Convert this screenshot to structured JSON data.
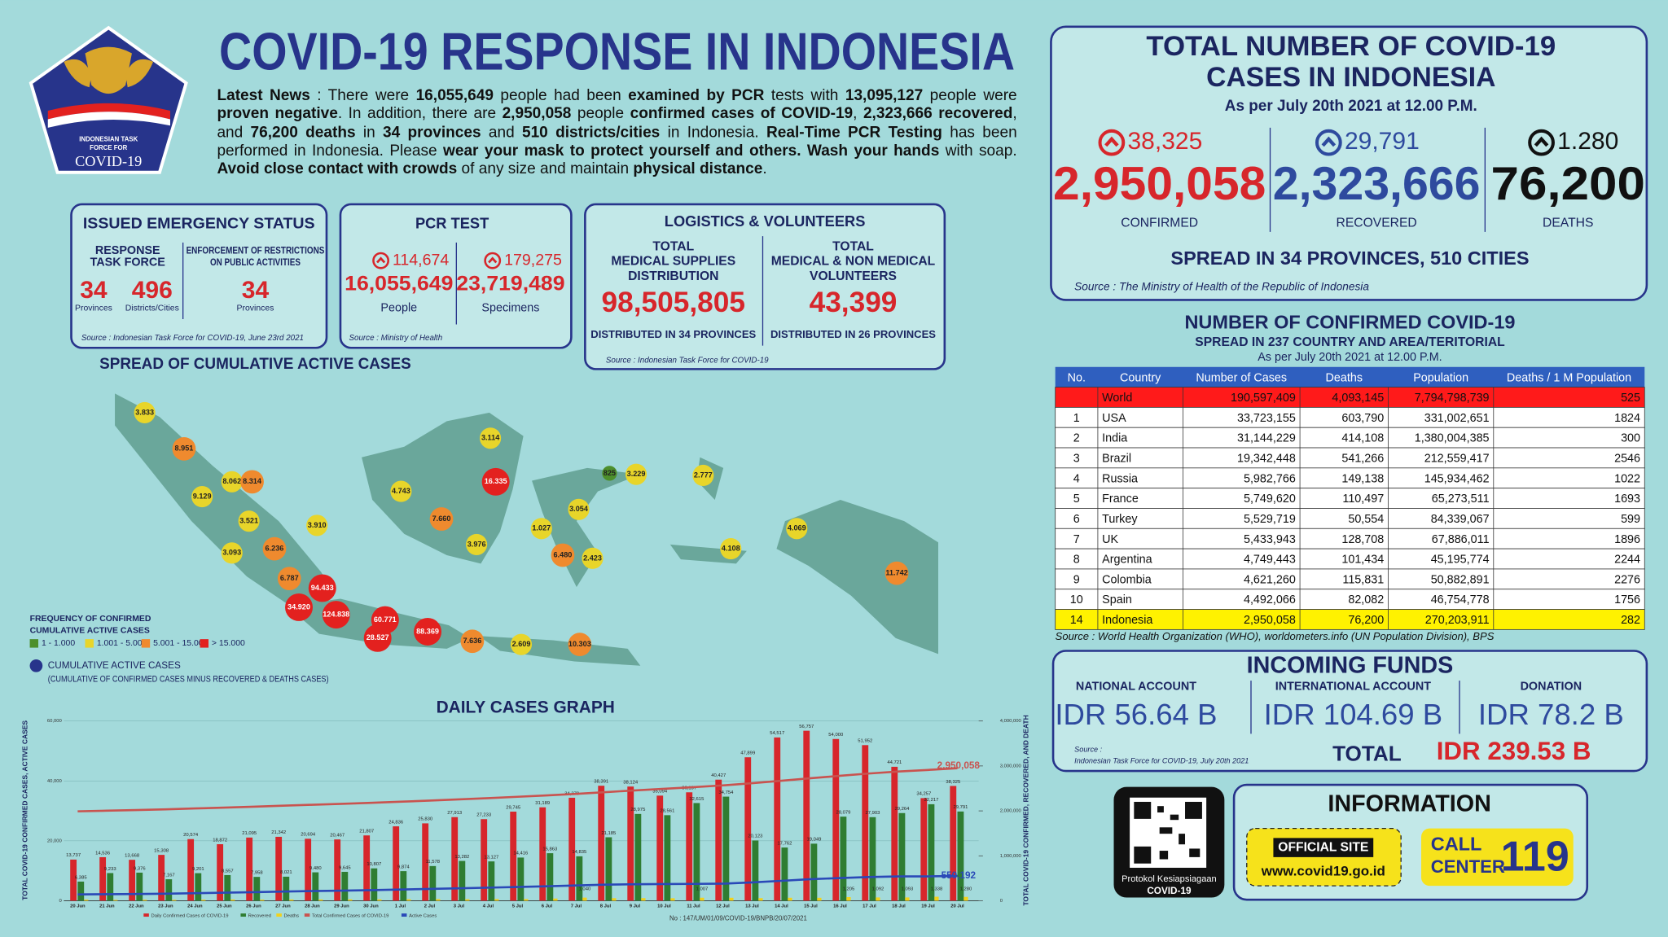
{
  "header": {
    "title": "COVID-19 RESPONSE IN INDONESIA",
    "logo": [
      "INDONESIAN TASK",
      "FORCE FOR",
      "COVID-19"
    ]
  },
  "news": [
    {
      "text": "Latest News",
      "bold": true
    },
    {
      "text": " : There were "
    },
    {
      "text": "16,055,649",
      "bold": true
    },
    {
      "text": " people had been "
    },
    {
      "text": "examined by PCR",
      "bold": true
    },
    {
      "text": " tests with "
    },
    {
      "text": "13,095,127",
      "bold": true
    },
    {
      "text": " people were "
    },
    {
      "text": "proven negative",
      "bold": true
    },
    {
      "text": ". In addition, there are "
    },
    {
      "text": "2,950,058",
      "bold": true
    },
    {
      "text": " people "
    },
    {
      "text": "confirmed cases of COVID-19",
      "bold": true
    },
    {
      "text": ", "
    },
    {
      "text": "2,323,666 recovered",
      "bold": true
    },
    {
      "text": ", and "
    },
    {
      "text": "76,200 deaths",
      "bold": true
    },
    {
      "text": " in "
    },
    {
      "text": "34 provinces",
      "bold": true
    },
    {
      "text": " and "
    },
    {
      "text": "510 districts/cities",
      "bold": true
    },
    {
      "text": " in Indonesia. "
    },
    {
      "text": "Real-Time PCR Testing",
      "bold": true
    },
    {
      "text": " has been performed in Indonesia. Please "
    },
    {
      "text": "wear your mask to protect yourself and others. Wash your hands",
      "bold": true
    },
    {
      "text": " with soap. "
    },
    {
      "text": "Avoid close contact with crowds",
      "bold": true
    },
    {
      "text": " of any size and maintain "
    },
    {
      "text": "physical distance",
      "bold": true
    },
    {
      "text": "."
    }
  ],
  "emergency": {
    "title": "ISSUED EMERGENCY STATUS",
    "col1": [
      "RESPONSE",
      "TASK FORCE"
    ],
    "col2": [
      "ENFORCEMENT OF RESTRICTIONS",
      "ON PUBLIC ACTIVITIES"
    ],
    "items": [
      {
        "value": "34",
        "label": "Provinces"
      },
      {
        "value": "496",
        "label": "Districts/Cities"
      },
      {
        "value": "34",
        "label": "Provinces"
      }
    ],
    "source": "Source : Indonesian Task Force for COVID-19, June 23rd 2021"
  },
  "pcr": {
    "title": "PCR TEST",
    "items": [
      {
        "increase": "114,674",
        "value": "16,055,649",
        "label": "People"
      },
      {
        "increase": "179,275",
        "value": "23,719,489",
        "label": "Specimens"
      }
    ],
    "source": "Source : Ministry of Health"
  },
  "logistics": {
    "title": "LOGISTICS & VOLUNTEERS",
    "items": [
      {
        "heading": [
          "TOTAL",
          "MEDICAL SUPPLIES",
          "DISTRIBUTION"
        ],
        "value": "98,505,805",
        "note": "DISTRIBUTED IN 34 PROVINCES"
      },
      {
        "heading": [
          "TOTAL",
          "MEDICAL & NON MEDICAL",
          "VOLUNTEERS"
        ],
        "value": "43,399",
        "note": "DISTRIBUTED IN 26 PROVINCES"
      }
    ],
    "source": "Source : Indonesian Task Force for COVID-19"
  },
  "map": {
    "title": "SPREAD OF CUMULATIVE ACTIVE CASES",
    "legend_title": [
      "FREQUENCY OF CONFIRMED",
      "CUMULATIVE ACTIVE CASES"
    ],
    "levels": [
      {
        "label": "1 - 1.000",
        "color": "#4d8f2c"
      },
      {
        "label": "1.001 - 5.000",
        "color": "#e8d52a"
      },
      {
        "label": "5.001 - 15.000",
        "color": "#ef8a2e"
      },
      {
        "label": "> 15.000",
        "color": "#e3211f"
      }
    ],
    "active_note": [
      "CUMULATIVE ACTIVE CASES",
      "(CUMULATIVE OF CONFIRMED CASES MINUS RECOVERED & DEATHS CASES)"
    ],
    "bubbles": [
      {
        "label": "3.833",
        "level": 1
      },
      {
        "label": "8.951",
        "level": 2
      },
      {
        "label": "9.129",
        "level": 1
      },
      {
        "label": "8.062",
        "level": 1
      },
      {
        "label": "8.314",
        "level": 2
      },
      {
        "label": "3.521",
        "level": 1
      },
      {
        "label": "3.910",
        "level": 1
      },
      {
        "label": "3.093",
        "level": 1
      },
      {
        "label": "6.236",
        "level": 2
      },
      {
        "label": "6.787",
        "level": 2
      },
      {
        "label": "94.433",
        "level": 3
      },
      {
        "label": "34.920",
        "level": 3
      },
      {
        "label": "124.838",
        "level": 3
      },
      {
        "label": "60.771",
        "level": 3
      },
      {
        "label": "28.527",
        "level": 3
      },
      {
        "label": "88.369",
        "level": 3
      },
      {
        "label": "7.636",
        "level": 2
      },
      {
        "label": "2.609",
        "level": 1
      },
      {
        "label": "10.303",
        "level": 2
      },
      {
        "label": "4.743",
        "level": 1
      },
      {
        "label": "7.660",
        "level": 2
      },
      {
        "label": "3.114",
        "level": 1
      },
      {
        "label": "16.335",
        "level": 3
      },
      {
        "label": "3.976",
        "level": 1
      },
      {
        "label": "1.027",
        "level": 1
      },
      {
        "label": "3.054",
        "level": 1
      },
      {
        "label": "6.480",
        "level": 2
      },
      {
        "label": "2.423",
        "level": 1
      },
      {
        "label": "825",
        "level": 0
      },
      {
        "label": "3.229",
        "level": 1
      },
      {
        "label": "2.777",
        "level": 1
      },
      {
        "label": "4.069",
        "level": 1
      },
      {
        "label": "4.108",
        "level": 1
      },
      {
        "label": "11.742",
        "level": 2
      }
    ]
  },
  "totals": {
    "title": [
      "TOTAL NUMBER OF COVID-19",
      "CASES IN INDONESIA"
    ],
    "date": "As per July 20th 2021 at 12.00 P.M.",
    "items": [
      {
        "increase": "38,325",
        "value": "2,950,058",
        "label": "CONFIRMED",
        "color": "#d7262b"
      },
      {
        "increase": "29,791",
        "value": "2,323,666",
        "label": "RECOVERED",
        "color": "#2e4a9e"
      },
      {
        "increase": "1.280",
        "value": "76,200",
        "label": "DEATHS",
        "color": "#111111"
      }
    ],
    "spread": "SPREAD IN 34 PROVINCES, 510 CITIES",
    "source": "Source : The Ministry of Health of the Republic of Indonesia"
  },
  "world": {
    "title": "NUMBER OF CONFIRMED COVID-19",
    "subtitle": "SPREAD IN 237 COUNTRY AND AREA/TERITORIAL",
    "date": "As per July 20th 2021 at 12.00 P.M.",
    "columns": [
      "No.",
      "Country",
      "Number of Cases",
      "Deaths",
      "Population",
      "Deaths / 1 M Population"
    ],
    "rows": [
      [
        null,
        "World",
        "190,597,409",
        "4,093,145",
        "7,794,798,739",
        "525"
      ],
      [
        "1",
        "USA",
        "33,723,155",
        "603,790",
        "331,002,651",
        "1824"
      ],
      [
        "2",
        "India",
        "31,144,229",
        "414,108",
        "1,380,004,385",
        "300"
      ],
      [
        "3",
        "Brazil",
        "19,342,448",
        "541,266",
        "212,559,417",
        "2546"
      ],
      [
        "4",
        "Russia",
        "5,982,766",
        "149,138",
        "145,934,462",
        "1022"
      ],
      [
        "5",
        "France",
        "5,749,620",
        "110,497",
        "65,273,511",
        "1693"
      ],
      [
        "6",
        "Turkey",
        "5,529,719",
        "50,554",
        "84,339,067",
        "599"
      ],
      [
        "7",
        "UK",
        "5,433,943",
        "128,708",
        "67,886,011",
        "1896"
      ],
      [
        "8",
        "Argentina",
        "4,749,443",
        "101,434",
        "45,195,774",
        "2244"
      ],
      [
        "9",
        "Colombia",
        "4,621,260",
        "115,831",
        "50,882,891",
        "2276"
      ],
      [
        "10",
        "Spain",
        "4,492,066",
        "82,082",
        "46,754,778",
        "1756"
      ],
      [
        "14",
        "Indonesia",
        "2,950,058",
        "76,200",
        "270,203,911",
        "282"
      ]
    ],
    "row_colors": [
      "#ff1a1a",
      null,
      null,
      null,
      null,
      null,
      null,
      null,
      null,
      null,
      null,
      "#fff200"
    ],
    "header_color": "#2f5fbf",
    "source": "Source : World Health Organization (WHO), worldometers.info (UN Population Division), BPS"
  },
  "funds": {
    "title": "INCOMING FUNDS",
    "items": [
      {
        "label": "NATIONAL ACCOUNT",
        "value": "IDR 56.64 B"
      },
      {
        "label": "INTERNATIONAL ACCOUNT",
        "value": "IDR 104.69 B"
      },
      {
        "label": "DONATION",
        "value": "IDR 78.2 B"
      }
    ],
    "source": [
      "Source :",
      "Indonesian Task Force for COVID-19, July 20th 2021"
    ],
    "total_label": "TOTAL",
    "total": "IDR 239.53 B"
  },
  "info": {
    "qr_caption": [
      "Protokol Kesiapsiagaan",
      "COVID-19"
    ],
    "title": "INFORMATION",
    "site_label": "OFFICIAL SITE",
    "site": "www.covid19.go.id",
    "call": [
      "CALL",
      "CENTER"
    ],
    "call_number": "119"
  },
  "doc_number": "No : 147/UM/01/09/COVID-19/BNPB/20/07/2021",
  "chart_data": {
    "type": "bar",
    "title": "DAILY CASES GRAPH",
    "y_label": "TOTAL COVID-19 CONFIRMED CASES, ACTIVE CASES",
    "y2_label": "TOTAL COVID-19 CONFIRMED, RECOVERED, AND DEATH",
    "categories": [
      "20 Jun",
      "21 Jun",
      "22 Jun",
      "23 Jun",
      "24 Jun",
      "25 Jun",
      "26 Jun",
      "27 Jun",
      "28 Jun",
      "29 Jun",
      "30 Jun",
      "1 Jul",
      "2 Jul",
      "3 Jul",
      "4 Jul",
      "5 Jul",
      "6 Jul",
      "7 Jul",
      "8 Jul",
      "9 Jul",
      "10 Jul",
      "11 Jul",
      "12 Jul",
      "13 Jul",
      "14 Jul",
      "15 Jul",
      "16 Jul",
      "17 Jul",
      "18 Jul",
      "19 Jul",
      "20 Jul"
    ],
    "ylim": [
      0,
      60000
    ],
    "yticks": [
      0,
      {
        "value": 20000,
        "label": "20,000"
      },
      {
        "value": 40000,
        "label": "40,000"
      },
      {
        "value": 60000,
        "label": "60,000"
      }
    ],
    "y2lim": [
      0,
      4000000
    ],
    "y2ticks": [
      0,
      {
        "value": 1000000,
        "label": "1,000,000"
      },
      {
        "value": 2000000,
        "label": "2,000,000"
      },
      {
        "value": 3000000,
        "label": "3,000,000"
      },
      {
        "value": 4000000,
        "label": "4,000,000"
      }
    ],
    "grid": true,
    "series": [
      {
        "name": "Daily Confirmed Cases of COVID-19",
        "color": "#d7262b",
        "type": "bar",
        "values": [
          13737,
          14536,
          13668,
          15308,
          20574,
          18872,
          21095,
          21342,
          20694,
          20467,
          21807,
          24836,
          25830,
          27913,
          27233,
          29745,
          31189,
          34379,
          38391,
          38124,
          35094,
          36197,
          40427,
          47899,
          54517,
          56757,
          54000,
          51952,
          44721,
          34257,
          38325
        ],
        "value_labels": [
          "13,737",
          "14,536",
          "13,668",
          "15,308",
          "20,574",
          "18,872",
          "21,095",
          "21,342",
          "20,694",
          "20,467",
          "21,807",
          "24,836",
          "25,830",
          "27,913",
          "27,233",
          "29,745",
          "31,189",
          "34,379",
          "38,391",
          "38,124",
          "35,094",
          "36,197",
          "40,427",
          "47,899",
          "54,517",
          "56,757",
          "54,000",
          "51,952",
          "44,721",
          "34,257",
          "38,325"
        ]
      },
      {
        "name": "Recovered",
        "color": "#2f7d32",
        "type": "bar",
        "values": [
          6385,
          9233,
          9376,
          7167,
          9201,
          8557,
          7958,
          8021,
          9480,
          9645,
          10807,
          9874,
          11578,
          13282,
          13127,
          14416,
          15863,
          14835,
          21185,
          28975,
          28561,
          32615,
          34754,
          20123,
          17762,
          19049,
          28079,
          27903,
          29264,
          32217,
          29791
        ],
        "value_labels": [
          "6,385",
          "9,233",
          "9,376",
          "7,167",
          "9,201",
          "8,557",
          "7,958",
          "8,021",
          "9,480",
          "9,645",
          "10,807",
          "9,874",
          "11,578",
          "13,282",
          "13,127",
          "14,416",
          "15,863",
          "14,835",
          "21,185",
          "28,975",
          "28,561",
          "32,615",
          "34,754",
          "20,123",
          "17,762",
          "19,049",
          "28,079",
          "27,903",
          "29,264",
          "32,217",
          "29,791"
        ]
      },
      {
        "name": "Deaths",
        "color": "#f2d21b",
        "type": "bar",
        "values": [
          371,
          294,
          335,
          303,
          355,
          422,
          358,
          409,
          423,
          463,
          467,
          504,
          539,
          493,
          555,
          558,
          728,
          1040,
          852,
          871,
          826,
          1007,
          991,
          864,
          991,
          982,
          1205,
          1092,
          1093,
          1338,
          1280
        ],
        "value_labels": [
          null,
          null,
          null,
          null,
          null,
          null,
          null,
          null,
          null,
          null,
          null,
          null,
          null,
          null,
          null,
          null,
          null,
          "1,040",
          null,
          null,
          null,
          "1,007",
          null,
          null,
          null,
          null,
          "1,205",
          "1,092",
          "1,093",
          "1,338",
          "1,280"
        ]
      },
      {
        "name": "Total Confirmed Cases of COVID-19",
        "color": "#c9534f",
        "type": "line",
        "axis": "y2",
        "values": [
          1989909,
          2004445,
          2018113,
          2033421,
          2053995,
          2072867,
          2093962,
          2115304,
          2135998,
          2156465,
          2178272,
          2203108,
          2228938,
          2256851,
          2284084,
          2313829,
          2345018,
          2379397,
          2417788,
          2455912,
          2491006,
          2527203,
          2567630,
          2615529,
          2670046,
          2726803,
          2780803,
          2832755,
          2877476,
          2911733,
          2950058
        ],
        "value_labels": [
          null,
          null,
          null,
          null,
          null,
          null,
          null,
          null,
          null,
          null,
          null,
          null,
          null,
          null,
          null,
          null,
          null,
          null,
          null,
          null,
          null,
          null,
          null,
          null,
          null,
          null,
          null,
          null,
          null,
          null,
          "2,950,058"
        ]
      },
      {
        "name": "Active Cases",
        "color": "#2a49b8",
        "type": "line",
        "axis": "y2",
        "values": [
          141000,
          145000,
          149000,
          157000,
          168000,
          178000,
          191000,
          204000,
          215000,
          225000,
          236000,
          250000,
          263000,
          277000,
          291000,
          306000,
          321000,
          340000,
          357000,
          366000,
          372000,
          375000,
          380000,
          407000,
          443000,
          480000,
          505000,
          528000,
          542000,
          542000,
          550192
        ],
        "value_labels": [
          null,
          null,
          null,
          null,
          null,
          null,
          null,
          null,
          null,
          null,
          null,
          null,
          null,
          null,
          null,
          null,
          null,
          null,
          null,
          null,
          null,
          null,
          null,
          null,
          null,
          null,
          null,
          null,
          null,
          null,
          "550,192"
        ]
      }
    ]
  }
}
